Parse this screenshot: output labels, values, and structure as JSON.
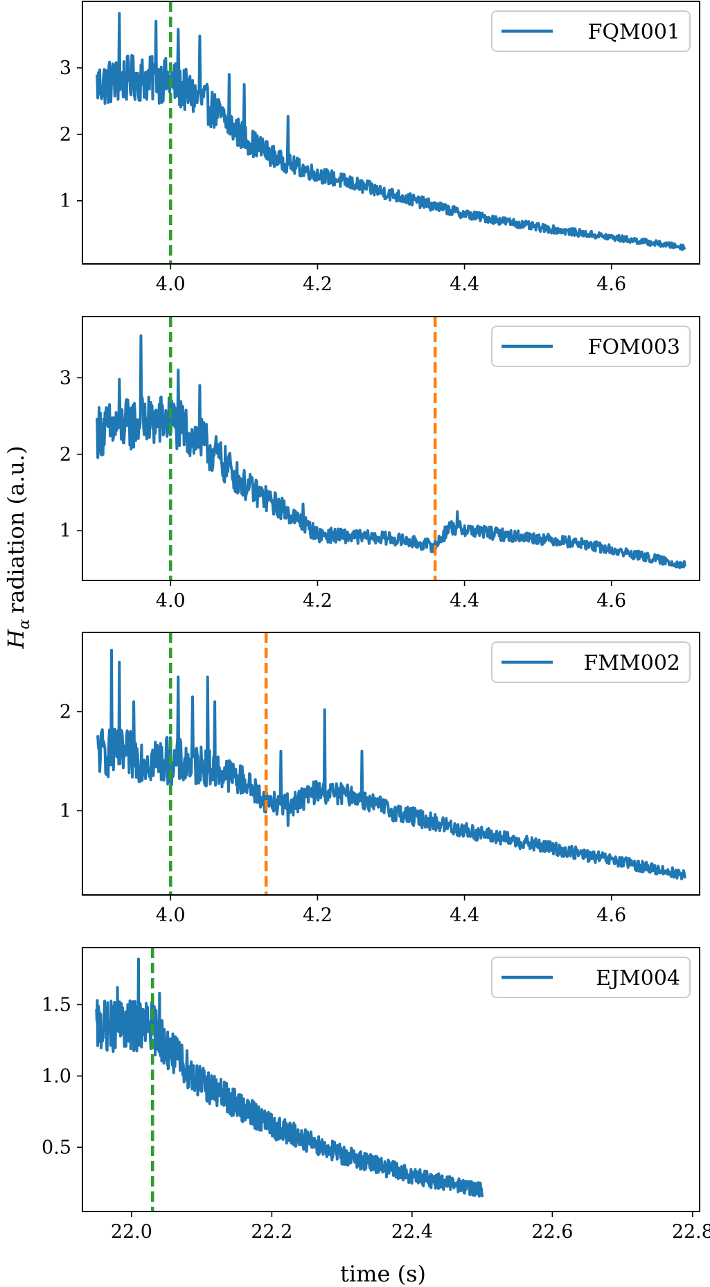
{
  "figure": {
    "ylabel": "radiation (a.u.)",
    "ylabel_symbol": "H",
    "ylabel_subscript": "α",
    "xlabel": "time (s)"
  },
  "chart_data": [
    {
      "type": "line",
      "legend": "FQM001",
      "legend_position": "top-right",
      "color": "#1f77b4",
      "xlim": [
        3.88,
        4.72
      ],
      "ylim": [
        0.05,
        4.0
      ],
      "xticks": [
        4.0,
        4.2,
        4.4,
        4.6
      ],
      "xtick_labels": [
        "4.0",
        "4.2",
        "4.4",
        "4.6"
      ],
      "yticks": [
        1,
        2,
        3
      ],
      "ytick_labels": [
        "1",
        "2",
        "3"
      ],
      "x_start": 3.9,
      "x_end": 4.7,
      "envelope": {
        "x": [
          3.9,
          3.95,
          4.0,
          4.05,
          4.1,
          4.15,
          4.2,
          4.3,
          4.4,
          4.5,
          4.6,
          4.7
        ],
        "y": [
          2.75,
          2.85,
          2.8,
          2.45,
          1.95,
          1.6,
          1.4,
          1.1,
          0.8,
          0.6,
          0.45,
          0.3
        ],
        "noise": [
          0.35,
          0.35,
          0.35,
          0.3,
          0.22,
          0.15,
          0.12,
          0.1,
          0.07,
          0.06,
          0.05,
          0.04
        ]
      },
      "spikes": [
        {
          "x": 3.93,
          "y": 3.82
        },
        {
          "x": 3.98,
          "y": 3.7
        },
        {
          "x": 4.01,
          "y": 3.58
        },
        {
          "x": 4.04,
          "y": 3.48
        },
        {
          "x": 4.08,
          "y": 2.9
        },
        {
          "x": 4.1,
          "y": 2.75
        },
        {
          "x": 4.16,
          "y": 2.27
        }
      ],
      "vlines": [
        {
          "x": 4.0,
          "color": "#2ca02c"
        }
      ]
    },
    {
      "type": "line",
      "legend": "FOM003",
      "legend_position": "top-right",
      "color": "#1f77b4",
      "xlim": [
        3.88,
        4.72
      ],
      "ylim": [
        0.35,
        3.8
      ],
      "xticks": [
        4.0,
        4.2,
        4.4,
        4.6
      ],
      "xtick_labels": [
        "4.0",
        "4.2",
        "4.4",
        "4.6"
      ],
      "yticks": [
        1,
        2,
        3
      ],
      "ytick_labels": [
        "1",
        "2",
        "3"
      ],
      "x_start": 3.9,
      "x_end": 4.7,
      "envelope": {
        "x": [
          3.9,
          3.95,
          4.0,
          4.05,
          4.1,
          4.15,
          4.18,
          4.2,
          4.3,
          4.36,
          4.38,
          4.45,
          4.55,
          4.65,
          4.7
        ],
        "y": [
          2.3,
          2.4,
          2.45,
          2.1,
          1.6,
          1.3,
          1.1,
          0.95,
          0.9,
          0.8,
          1.05,
          0.95,
          0.85,
          0.65,
          0.55
        ],
        "noise": [
          0.35,
          0.35,
          0.35,
          0.3,
          0.2,
          0.15,
          0.12,
          0.1,
          0.08,
          0.08,
          0.1,
          0.08,
          0.07,
          0.06,
          0.05
        ]
      },
      "spikes": [
        {
          "x": 3.96,
          "y": 3.55
        },
        {
          "x": 3.93,
          "y": 2.98
        },
        {
          "x": 4.01,
          "y": 3.1
        },
        {
          "x": 4.04,
          "y": 2.9
        },
        {
          "x": 4.08,
          "y": 2.0
        },
        {
          "x": 4.18,
          "y": 1.35
        },
        {
          "x": 4.39,
          "y": 1.25
        }
      ],
      "vlines": [
        {
          "x": 4.0,
          "color": "#2ca02c"
        },
        {
          "x": 4.36,
          "color": "#ff7f0e"
        }
      ]
    },
    {
      "type": "line",
      "legend": "FMM002",
      "legend_position": "top-right",
      "color": "#1f77b4",
      "xlim": [
        3.88,
        4.72
      ],
      "ylim": [
        0.15,
        2.8
      ],
      "xticks": [
        4.0,
        4.2,
        4.4,
        4.6
      ],
      "xtick_labels": [
        "4.0",
        "4.2",
        "4.4",
        "4.6"
      ],
      "yticks": [
        1,
        2
      ],
      "ytick_labels": [
        "1",
        "2"
      ],
      "x_start": 3.9,
      "x_end": 4.7,
      "envelope": {
        "x": [
          3.9,
          3.95,
          4.0,
          4.05,
          4.1,
          4.13,
          4.16,
          4.2,
          4.25,
          4.3,
          4.4,
          4.5,
          4.6,
          4.7
        ],
        "y": [
          1.6,
          1.55,
          1.5,
          1.45,
          1.3,
          1.1,
          1.05,
          1.2,
          1.15,
          1.0,
          0.8,
          0.65,
          0.5,
          0.35
        ],
        "noise": [
          0.25,
          0.25,
          0.25,
          0.2,
          0.15,
          0.12,
          0.12,
          0.12,
          0.1,
          0.1,
          0.08,
          0.07,
          0.06,
          0.05
        ]
      },
      "spikes": [
        {
          "x": 3.92,
          "y": 2.62
        },
        {
          "x": 3.93,
          "y": 2.5
        },
        {
          "x": 3.95,
          "y": 2.1
        },
        {
          "x": 4.01,
          "y": 2.35
        },
        {
          "x": 4.03,
          "y": 2.15
        },
        {
          "x": 4.05,
          "y": 2.35
        },
        {
          "x": 4.06,
          "y": 2.1
        },
        {
          "x": 4.15,
          "y": 1.6
        },
        {
          "x": 4.21,
          "y": 2.02
        },
        {
          "x": 4.26,
          "y": 1.6
        },
        {
          "x": 4.16,
          "y": 0.85
        }
      ],
      "vlines": [
        {
          "x": 4.0,
          "color": "#2ca02c"
        },
        {
          "x": 4.13,
          "color": "#ff7f0e"
        }
      ]
    },
    {
      "type": "line",
      "legend": "EJM004",
      "legend_position": "top-right",
      "color": "#1f77b4",
      "xlim": [
        21.93,
        22.81
      ],
      "ylim": [
        0.05,
        1.9
      ],
      "xticks": [
        22.0,
        22.2,
        22.4,
        22.6,
        22.8
      ],
      "xtick_labels": [
        "22.0",
        "22.2",
        "22.4",
        "22.6",
        "22.8"
      ],
      "yticks": [
        0.5,
        1.0,
        1.5
      ],
      "ytick_labels": [
        "0.5",
        "1.0",
        "1.5"
      ],
      "x_start": 21.95,
      "x_end": 22.5,
      "envelope": {
        "x": [
          21.95,
          22.0,
          22.03,
          22.05,
          22.1,
          22.15,
          22.2,
          22.3,
          22.4,
          22.5
        ],
        "y": [
          1.35,
          1.35,
          1.35,
          1.2,
          0.95,
          0.8,
          0.65,
          0.45,
          0.3,
          0.2
        ],
        "noise": [
          0.18,
          0.18,
          0.18,
          0.15,
          0.12,
          0.1,
          0.09,
          0.07,
          0.06,
          0.05
        ]
      },
      "spikes": [
        {
          "x": 22.01,
          "y": 1.82
        },
        {
          "x": 21.98,
          "y": 1.62
        },
        {
          "x": 22.04,
          "y": 1.58
        }
      ],
      "vlines": [
        {
          "x": 22.03,
          "color": "#2ca02c"
        }
      ]
    }
  ]
}
